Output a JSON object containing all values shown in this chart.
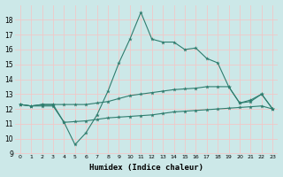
{
  "line1_x": [
    0,
    1,
    2,
    3,
    4,
    5,
    6,
    7,
    8,
    9,
    10,
    11,
    12,
    13,
    14,
    15,
    16,
    17,
    18,
    19,
    20,
    21,
    22,
    23
  ],
  "line1_y": [
    12.3,
    12.2,
    12.3,
    12.3,
    11.1,
    9.6,
    10.4,
    11.6,
    13.2,
    15.1,
    16.7,
    18.5,
    16.7,
    16.5,
    16.5,
    16.0,
    16.1,
    15.4,
    15.1,
    13.5,
    12.4,
    12.6,
    13.0,
    12.0
  ],
  "line2_x": [
    0,
    1,
    2,
    3,
    4,
    5,
    6,
    7,
    8,
    9,
    10,
    11,
    12,
    13,
    14,
    15,
    16,
    17,
    18,
    19,
    20,
    21,
    22,
    23
  ],
  "line2_y": [
    12.3,
    12.2,
    12.3,
    12.3,
    12.3,
    12.3,
    12.3,
    12.4,
    12.5,
    12.7,
    12.9,
    13.0,
    13.1,
    13.2,
    13.3,
    13.35,
    13.4,
    13.5,
    13.5,
    13.5,
    12.4,
    12.5,
    13.0,
    12.0
  ],
  "line3_x": [
    0,
    1,
    2,
    3,
    4,
    5,
    6,
    7,
    8,
    9,
    10,
    11,
    12,
    13,
    14,
    15,
    16,
    17,
    18,
    19,
    20,
    21,
    22,
    23
  ],
  "line3_y": [
    12.3,
    12.2,
    12.2,
    12.2,
    11.1,
    11.15,
    11.2,
    11.3,
    11.4,
    11.45,
    11.5,
    11.55,
    11.6,
    11.7,
    11.8,
    11.85,
    11.9,
    11.95,
    12.0,
    12.05,
    12.1,
    12.15,
    12.2,
    12.0
  ],
  "line_color": "#2e7d6e",
  "bg_color": "#cce8e8",
  "grid_color": "#f0c8c8",
  "xlabel": "Humidex (Indice chaleur)",
  "xlim": [
    -0.5,
    23.5
  ],
  "ylim": [
    9,
    19
  ],
  "yticks": [
    9,
    10,
    11,
    12,
    13,
    14,
    15,
    16,
    17,
    18
  ],
  "xticks": [
    0,
    1,
    2,
    3,
    4,
    5,
    6,
    7,
    8,
    9,
    10,
    11,
    12,
    13,
    14,
    15,
    16,
    17,
    18,
    19,
    20,
    21,
    22,
    23
  ],
  "marker": "*",
  "markersize": 3.5,
  "linewidth": 0.8
}
